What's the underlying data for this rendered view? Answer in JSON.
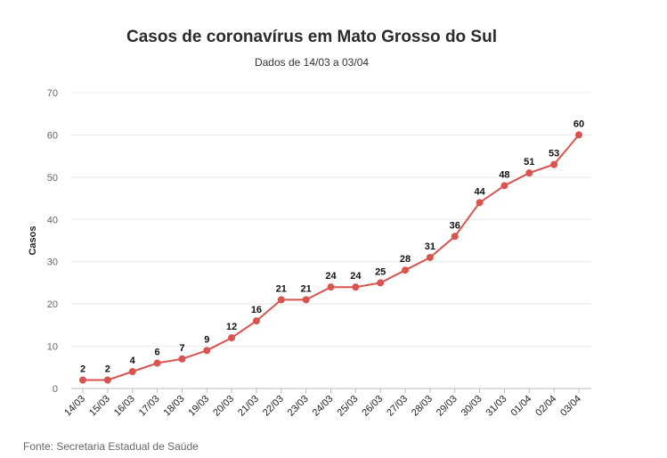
{
  "chart_data": {
    "type": "line",
    "title": "Casos de coronavírus em Mato Grosso do Sul",
    "subtitle": "Dados de 14/03 a 03/04",
    "xlabel": "",
    "ylabel": "Casos",
    "ylim": [
      0,
      70
    ],
    "yticks": [
      0,
      10,
      20,
      30,
      40,
      50,
      60,
      70
    ],
    "grid": true,
    "categories": [
      "14/03",
      "15/03",
      "16/03",
      "17/03",
      "18/03",
      "19/03",
      "20/03",
      "21/03",
      "22/03",
      "23/03",
      "24/03",
      "25/03",
      "26/03",
      "27/03",
      "28/03",
      "29/03",
      "30/03",
      "31/03",
      "01/04",
      "02/04",
      "03/04"
    ],
    "series": [
      {
        "values": [
          2,
          2,
          4,
          6,
          7,
          9,
          12,
          16,
          21,
          21,
          24,
          24,
          25,
          28,
          31,
          36,
          44,
          48,
          51,
          53,
          60
        ],
        "color": "#d9534f"
      }
    ]
  },
  "source": "Fonte: Secretaria Estadual de Saúde"
}
